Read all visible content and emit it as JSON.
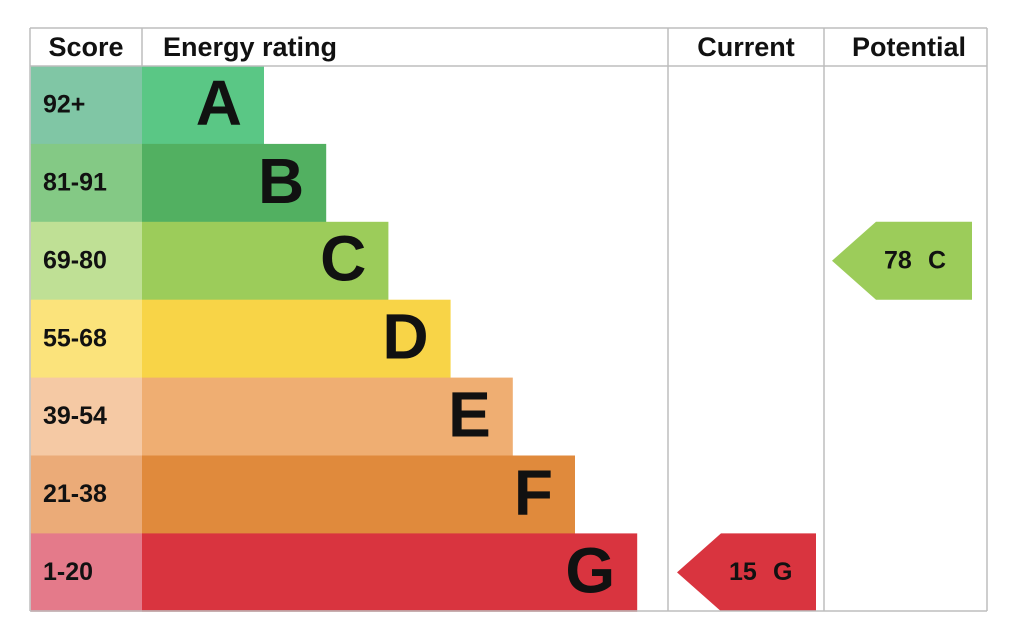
{
  "chart_data": {
    "type": "energy-rating",
    "headers": {
      "score": "Score",
      "rating": "Energy rating",
      "current": "Current",
      "potential": "Potential"
    },
    "bands": [
      {
        "score": "92+",
        "letter": "A",
        "color": "#5ac785",
        "score_color": "#80c6a5"
      },
      {
        "score": "81-91",
        "letter": "B",
        "color": "#52b061",
        "score_color": "#84c985"
      },
      {
        "score": "69-80",
        "letter": "C",
        "color": "#9ccc5a",
        "score_color": "#bfe095"
      },
      {
        "score": "55-68",
        "letter": "D",
        "color": "#f8d447",
        "score_color": "#fbe37b"
      },
      {
        "score": "39-54",
        "letter": "E",
        "color": "#efae72",
        "score_color": "#f5c9a4"
      },
      {
        "score": "21-38",
        "letter": "F",
        "color": "#e08a3c",
        "score_color": "#ebab78"
      },
      {
        "score": "1-20",
        "letter": "G",
        "color": "#d9343f",
        "score_color": "#e47a8a"
      }
    ],
    "current": {
      "value": 15,
      "rating": "G"
    },
    "potential": {
      "value": 78,
      "rating": "C"
    }
  }
}
